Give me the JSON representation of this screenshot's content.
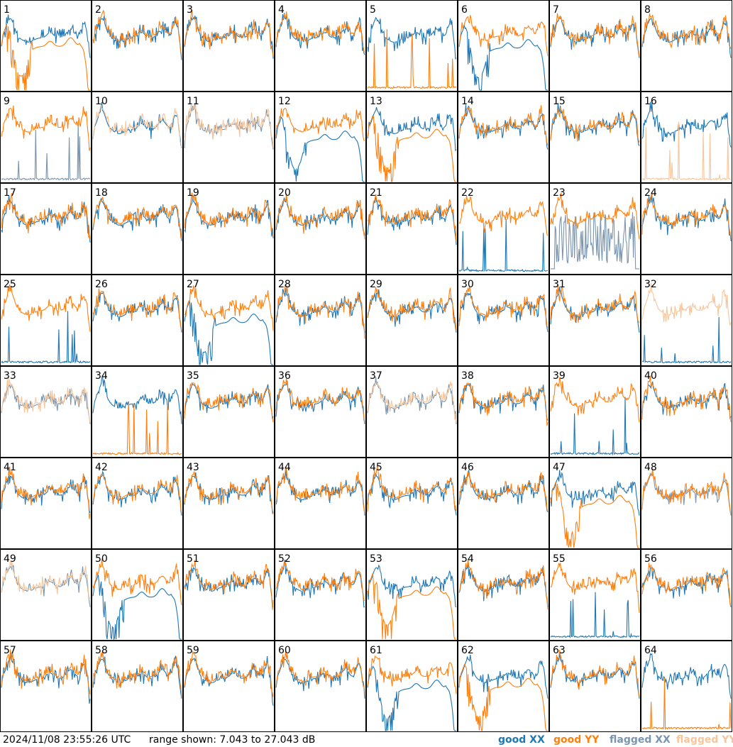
{
  "timestamp": "2024/11/08 23:55:26 UTC",
  "range_text": "range shown: 7.043 to 27.043 dB",
  "legend": {
    "good_word": "good",
    "flagged_word": "flagged",
    "xx": "XX",
    "yy": "YY"
  },
  "colors": {
    "good_xx": "#1f77b4",
    "good_yy": "#ff7f0e",
    "flagged_xx": "#7a95ad",
    "flagged_yy": "#f8c59a",
    "text": "#000000",
    "frame": "#000000"
  },
  "chart_data": {
    "type": "line",
    "grid": "8x8 small multiples",
    "y_range_db": [
      7.043,
      27.043
    ],
    "tiles": [
      {
        "id": "1",
        "xx": "good",
        "yy": "good",
        "yy_pattern": "droop"
      },
      {
        "id": "2",
        "xx": "good",
        "yy": "good"
      },
      {
        "id": "3",
        "xx": "good",
        "yy": "good"
      },
      {
        "id": "4",
        "xx": "good",
        "yy": "good"
      },
      {
        "id": "5",
        "xx": "good",
        "yy": "good",
        "yy_pattern": "dead"
      },
      {
        "id": "6",
        "xx": "good",
        "yy": "good",
        "xx_pattern": "droop"
      },
      {
        "id": "7",
        "xx": "good",
        "yy": "good"
      },
      {
        "id": "8",
        "xx": "good",
        "yy": "good"
      },
      {
        "id": "9",
        "xx": "flagged",
        "yy": "good",
        "xx_pattern": "dead"
      },
      {
        "id": "10",
        "xx": "good",
        "yy": "flagged"
      },
      {
        "id": "11",
        "xx": "flagged",
        "yy": "flagged"
      },
      {
        "id": "12",
        "xx": "good",
        "yy": "good",
        "xx_pattern": "droop"
      },
      {
        "id": "13",
        "xx": "good",
        "yy": "good",
        "yy_pattern": "droop"
      },
      {
        "id": "14",
        "xx": "good",
        "yy": "good"
      },
      {
        "id": "15",
        "xx": "good",
        "yy": "good"
      },
      {
        "id": "16",
        "xx": "good",
        "yy": "flagged",
        "yy_pattern": "dead"
      },
      {
        "id": "17",
        "xx": "good",
        "yy": "good"
      },
      {
        "id": "18",
        "xx": "good",
        "yy": "good"
      },
      {
        "id": "19",
        "xx": "good",
        "yy": "good"
      },
      {
        "id": "20",
        "xx": "good",
        "yy": "good"
      },
      {
        "id": "21",
        "xx": "good",
        "yy": "good"
      },
      {
        "id": "22",
        "xx": "good",
        "yy": "good",
        "xx_pattern": "dead"
      },
      {
        "id": "23",
        "xx": "flagged",
        "yy": "good",
        "xx_pattern": "noisy"
      },
      {
        "id": "24",
        "xx": "good",
        "yy": "good"
      },
      {
        "id": "25",
        "xx": "good",
        "yy": "good",
        "xx_pattern": "dead"
      },
      {
        "id": "26",
        "xx": "good",
        "yy": "good"
      },
      {
        "id": "27",
        "xx": "good",
        "yy": "good",
        "xx_pattern": "droop"
      },
      {
        "id": "28",
        "xx": "good",
        "yy": "good"
      },
      {
        "id": "29",
        "xx": "good",
        "yy": "good"
      },
      {
        "id": "30",
        "xx": "good",
        "yy": "good"
      },
      {
        "id": "31",
        "xx": "good",
        "yy": "good"
      },
      {
        "id": "32",
        "xx": "good",
        "yy": "flagged",
        "xx_pattern": "dead"
      },
      {
        "id": "33",
        "xx": "flagged",
        "yy": "flagged"
      },
      {
        "id": "34",
        "xx": "good",
        "yy": "good",
        "yy_pattern": "dead"
      },
      {
        "id": "35",
        "xx": "good",
        "yy": "good"
      },
      {
        "id": "36",
        "xx": "good",
        "yy": "good"
      },
      {
        "id": "37",
        "xx": "flagged",
        "yy": "flagged"
      },
      {
        "id": "38",
        "xx": "good",
        "yy": "good"
      },
      {
        "id": "39",
        "xx": "good",
        "yy": "good",
        "xx_pattern": "dead"
      },
      {
        "id": "40",
        "xx": "good",
        "yy": "good"
      },
      {
        "id": "41",
        "xx": "good",
        "yy": "good"
      },
      {
        "id": "42",
        "xx": "good",
        "yy": "good"
      },
      {
        "id": "43",
        "xx": "good",
        "yy": "good"
      },
      {
        "id": "44",
        "xx": "good",
        "yy": "good"
      },
      {
        "id": "45",
        "xx": "good",
        "yy": "good"
      },
      {
        "id": "46",
        "xx": "good",
        "yy": "good"
      },
      {
        "id": "47",
        "xx": "good",
        "yy": "good",
        "yy_pattern": "droop"
      },
      {
        "id": "48",
        "xx": "flagged",
        "yy": "good"
      },
      {
        "id": "49",
        "xx": "flagged",
        "yy": "flagged"
      },
      {
        "id": "50",
        "xx": "good",
        "yy": "good",
        "xx_pattern": "droop"
      },
      {
        "id": "51",
        "xx": "good",
        "yy": "good"
      },
      {
        "id": "52",
        "xx": "good",
        "yy": "good"
      },
      {
        "id": "53",
        "xx": "good",
        "yy": "good",
        "yy_pattern": "droop"
      },
      {
        "id": "54",
        "xx": "good",
        "yy": "good"
      },
      {
        "id": "55",
        "xx": "good",
        "yy": "good",
        "xx_pattern": "dead"
      },
      {
        "id": "56",
        "xx": "good",
        "yy": "good"
      },
      {
        "id": "57",
        "xx": "good",
        "yy": "good"
      },
      {
        "id": "58",
        "xx": "good",
        "yy": "good"
      },
      {
        "id": "59",
        "xx": "good",
        "yy": "good"
      },
      {
        "id": "60",
        "xx": "good",
        "yy": "good"
      },
      {
        "id": "61",
        "xx": "good",
        "yy": "good",
        "xx_pattern": "droop"
      },
      {
        "id": "62",
        "xx": "good",
        "yy": "good",
        "yy_pattern": "droop"
      },
      {
        "id": "63",
        "xx": "good",
        "yy": "good"
      },
      {
        "id": "64",
        "xx": "good",
        "yy": "good",
        "yy_pattern": "dead"
      }
    ]
  }
}
